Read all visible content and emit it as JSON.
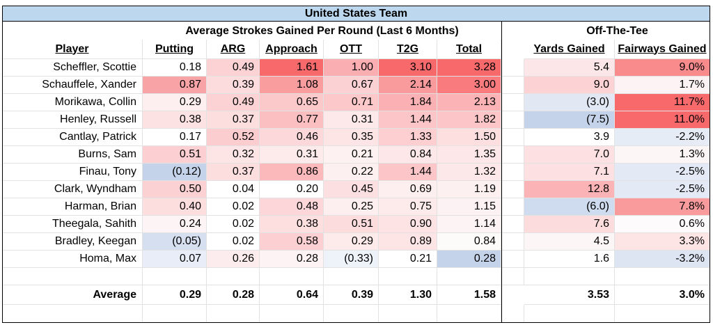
{
  "title": "United States Team",
  "groups": {
    "strokes": "Average Strokes Gained Per Round (Last 6 Months)",
    "tee": "Off-The-Tee"
  },
  "columns": [
    "Player",
    "Putting",
    "ARG",
    "Approach",
    "OTT",
    "T2G",
    "Total",
    "Yards Gained",
    "Fairways Gained"
  ],
  "rows": [
    {
      "player": "Scheffler, Scottie",
      "values": [
        "0.18",
        "0.49",
        "1.61",
        "1.00",
        "3.10",
        "3.28",
        "5.4",
        "9.0%"
      ],
      "colors": [
        "#ffffff",
        "#fcd2d4",
        "#f8696b",
        "#fbaeb1",
        "#f8696b",
        "#f8696b",
        "#fde6e7",
        "#f98b8d"
      ]
    },
    {
      "player": "Schauffele, Xander",
      "values": [
        "0.87",
        "0.39",
        "1.08",
        "0.67",
        "2.14",
        "3.00",
        "9.0",
        "1.7%"
      ],
      "colors": [
        "#f8a3a5",
        "#fddcde",
        "#fa9d9f",
        "#fcd1d3",
        "#f99b9d",
        "#f97b7d",
        "#fcd2d4",
        "#fdf3f4"
      ]
    },
    {
      "player": "Morikawa, Collin",
      "values": [
        "0.29",
        "0.49",
        "0.65",
        "0.71",
        "1.84",
        "2.13",
        "(3.0)",
        "11.7%"
      ],
      "colors": [
        "#fdeff0",
        "#fcd2d4",
        "#fcc9cb",
        "#fcc8ca",
        "#fbb1b3",
        "#fbb3b5",
        "#e1e8f3",
        "#f8696b"
      ]
    },
    {
      "player": "Henley, Russell",
      "values": [
        "0.38",
        "0.37",
        "0.77",
        "0.31",
        "1.44",
        "1.82",
        "(7.5)",
        "11.0%"
      ],
      "colors": [
        "#fde2e3",
        "#fddedf",
        "#fbbfc1",
        "#fde9ea",
        "#fcc6c8",
        "#fcc6c8",
        "#c5d3ea",
        "#f8696b"
      ]
    },
    {
      "player": "Cantlay, Patrick",
      "values": [
        "0.17",
        "0.52",
        "0.46",
        "0.35",
        "1.33",
        "1.50",
        "3.9",
        "-2.2%"
      ],
      "colors": [
        "#ffffff",
        "#fccdcf",
        "#fcd8da",
        "#fde5e6",
        "#fdcfd1",
        "#fddfe0",
        "#ffffff",
        "#e6ecf6"
      ]
    },
    {
      "player": "Burns, Sam",
      "values": [
        "0.51",
        "0.32",
        "0.31",
        "0.21",
        "0.84",
        "1.35",
        "7.0",
        "1.3%"
      ],
      "colors": [
        "#fcd0d2",
        "#fde5e6",
        "#fdeaeb",
        "#fdf1f2",
        "#fde7e8",
        "#fde7e8",
        "#fde1e2",
        "#fdf6f7"
      ]
    },
    {
      "player": "Finau, Tony",
      "values": [
        "(0.12)",
        "0.37",
        "0.86",
        "0.22",
        "1.44",
        "1.32",
        "7.1",
        "-2.5%"
      ],
      "colors": [
        "#c5d3ea",
        "#fddedf",
        "#fbb9bb",
        "#fdf0f1",
        "#fcc6c8",
        "#fde8e9",
        "#fde0e1",
        "#e3eaf5"
      ]
    },
    {
      "player": "Clark, Wyndham",
      "values": [
        "0.50",
        "0.04",
        "0.20",
        "0.45",
        "0.69",
        "1.19",
        "12.8",
        "-2.5%"
      ],
      "colors": [
        "#fcd1d3",
        "#ffffff",
        "#ffffff",
        "#fcdfe0",
        "#fdeeef",
        "#fdf0f1",
        "#fbb3b5",
        "#e3eaf5"
      ]
    },
    {
      "player": "Harman, Brian",
      "values": [
        "0.40",
        "0.02",
        "0.48",
        "0.25",
        "0.75",
        "1.15",
        "(6.0)",
        "7.8%"
      ],
      "colors": [
        "#fddedf",
        "#ffffff",
        "#fcd6d8",
        "#fdeeef",
        "#fdebec",
        "#fdf2f3",
        "#cfdbee",
        "#f99a9c"
      ]
    },
    {
      "player": "Theegala, Sahith",
      "values": [
        "0.24",
        "0.02",
        "0.38",
        "0.51",
        "0.90",
        "1.14",
        "7.6",
        "0.6%"
      ],
      "colors": [
        "#fdf4f5",
        "#ffffff",
        "#fddfe0",
        "#fcdcdd",
        "#fde3e4",
        "#fdf3f4",
        "#fddcdd",
        "#fdfbfb"
      ]
    },
    {
      "player": "Bradley, Keegan",
      "values": [
        "(0.05)",
        "0.02",
        "0.58",
        "0.29",
        "0.89",
        "0.84",
        "4.5",
        "3.3%"
      ],
      "colors": [
        "#d6dff0",
        "#ffffff",
        "#fcd0d2",
        "#fdebec",
        "#fde4e5",
        "#fdfafa",
        "#fdf6f7",
        "#fde5e6"
      ]
    },
    {
      "player": "Homa, Max",
      "values": [
        "0.07",
        "0.26",
        "0.28",
        "(0.33)",
        "0.21",
        "0.28",
        "1.6",
        "-3.2%"
      ],
      "colors": [
        "#e8edf7",
        "#fdeced",
        "#fdf3f4",
        "#eef2f9",
        "#ffffff",
        "#c5d3ea",
        "#ffffff",
        "#dde5f3"
      ]
    }
  ],
  "average": {
    "label": "Average",
    "values": [
      "0.29",
      "0.28",
      "0.64",
      "0.39",
      "1.30",
      "1.58",
      "3.53",
      "3.0%"
    ]
  }
}
